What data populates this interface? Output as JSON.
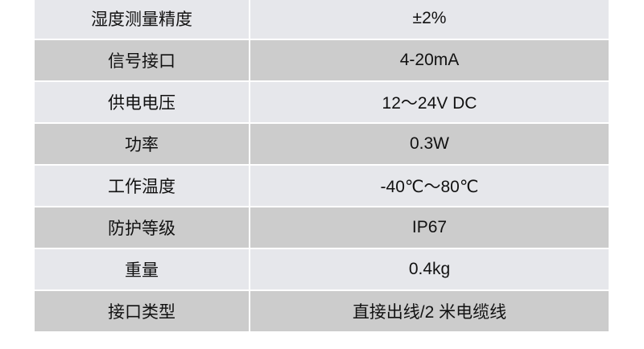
{
  "table": {
    "rows": [
      {
        "label": "湿度测量精度",
        "value": "±2%"
      },
      {
        "label": "信号接口",
        "value": "4-20mA"
      },
      {
        "label": "供电电压",
        "value": "12～24V DC"
      },
      {
        "label": "功率",
        "value": "0.3W"
      },
      {
        "label": "工作温度",
        "value": "-40℃～80℃"
      },
      {
        "label": "防护等级",
        "value": "IP67"
      },
      {
        "label": "重量",
        "value": "0.4kg"
      },
      {
        "label": "接口类型",
        "value": "直接出线/2 米电缆线"
      }
    ]
  },
  "colors": {
    "row_light": "#e6e7eb",
    "row_dark": "#cccccc"
  }
}
